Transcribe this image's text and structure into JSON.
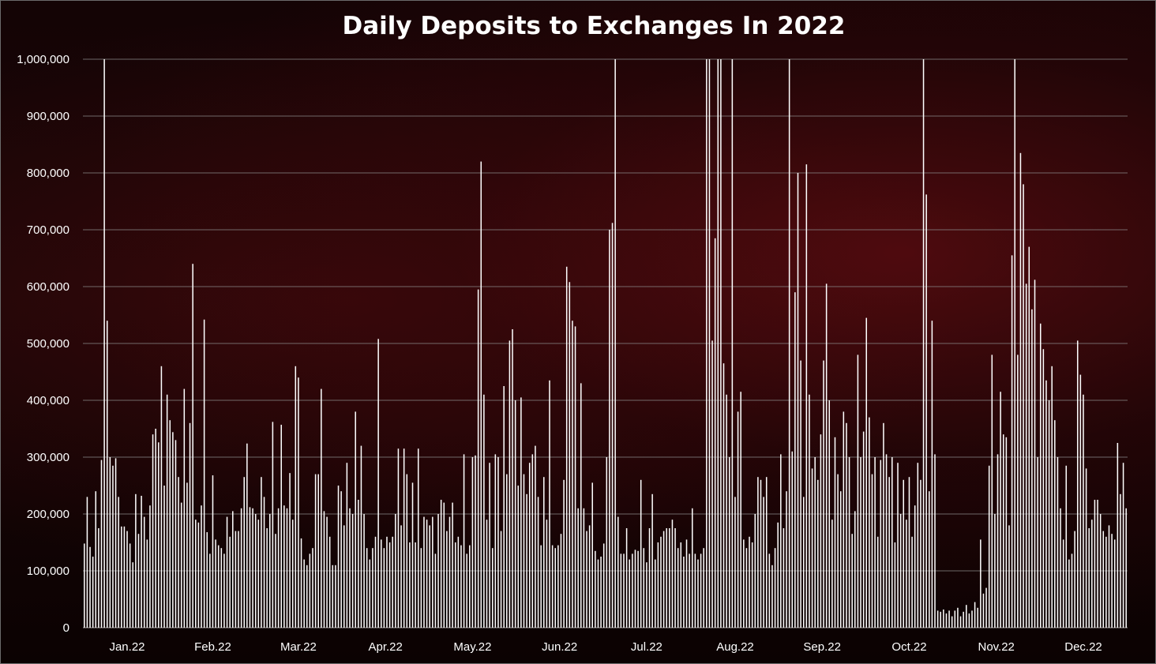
{
  "chart_data": {
    "type": "bar",
    "title": "Daily Deposits to Exchanges In 2022",
    "xlabel": "",
    "ylabel": "",
    "ylim": [
      0,
      1000000
    ],
    "grid": true,
    "legend": "none",
    "bar_color": "#ffffff",
    "background_color": "#1a0607",
    "y_ticks": [
      "0",
      "100,000",
      "200,000",
      "300,000",
      "400,000",
      "500,000",
      "600,000",
      "700,000",
      "800,000",
      "900,000",
      "1,000,000"
    ],
    "x_tick_labels": [
      "Jan.22",
      "Feb.22",
      "Mar.22",
      "Apr.22",
      "May.22",
      "Jun.22",
      "Jul.22",
      "Aug.22",
      "Sep.22",
      "Oct.22",
      "Nov.22",
      "Dec.22"
    ],
    "series": [
      {
        "months": [
          "Jan.22",
          "Feb.22",
          "Mar.22",
          "Apr.22",
          "May.22",
          "Jun.22",
          "Jul.22",
          "Aug.22",
          "Sep.22",
          "Oct.22",
          "Nov.22",
          "Dec.22"
        ],
        "daily_values": [
          [
            148000,
            230000,
            142000,
            125000,
            240000,
            175000,
            295000,
            1000000,
            540000,
            300000,
            285000,
            298000,
            230000,
            178000,
            178000,
            170000,
            148000,
            115000,
            235000,
            165000,
            232000,
            195000,
            155000,
            215000,
            340000,
            350000,
            326000,
            460000,
            250000,
            410000,
            365000
          ],
          [
            344000,
            330000,
            265000,
            220000,
            420000,
            255000,
            360000,
            640000,
            190000,
            185000,
            215000,
            542000,
            168000,
            130000,
            268000,
            155000,
            145000,
            140000,
            130000,
            195000,
            160000,
            205000,
            170000,
            170000,
            210000,
            265000,
            324000,
            212000,
            210000
          ],
          [
            200000,
            190000,
            265000,
            230000,
            175000,
            200000,
            362000,
            165000,
            210000,
            357000,
            215000,
            210000,
            272000,
            190000,
            460000,
            440000,
            157000,
            120000,
            110000,
            130000,
            140000,
            270000,
            270000,
            420000,
            205000,
            195000,
            160000,
            110000,
            110000,
            250000,
            240000
          ],
          [
            180000,
            290000,
            210000,
            200000,
            380000,
            225000,
            320000,
            200000,
            140000,
            120000,
            140000,
            160000,
            508000,
            155000,
            140000,
            160000,
            150000,
            160000,
            200000,
            315000,
            180000,
            315000,
            270000,
            150000,
            255000,
            150000,
            315000,
            140000,
            195000,
            190000
          ],
          [
            180000,
            195000,
            130000,
            200000,
            225000,
            220000,
            170000,
            195000,
            220000,
            150000,
            160000,
            145000,
            305000,
            130000,
            145000,
            300000,
            303000,
            595000,
            820000,
            410000,
            190000,
            290000,
            140000,
            305000,
            300000,
            170000,
            425000,
            270000,
            505000,
            525000,
            400000
          ],
          [
            250000,
            405000,
            270000,
            235000,
            290000,
            305000,
            320000,
            230000,
            145000,
            265000,
            190000,
            435000,
            145000,
            140000,
            145000,
            165000,
            260000,
            635000,
            608000,
            540000,
            530000,
            210000,
            430000,
            210000,
            170000,
            180000,
            255000,
            135000,
            120000,
            125000
          ],
          [
            148000,
            300000,
            700000,
            712000,
            1000000,
            195000,
            130000,
            130000,
            175000,
            120000,
            130000,
            137000,
            135000,
            260000,
            140000,
            115000,
            175000,
            235000,
            120000,
            150000,
            160000,
            170000,
            175000,
            175000,
            190000,
            175000,
            140000,
            150000,
            125000,
            155000,
            130000
          ],
          [
            210000,
            130000,
            120000,
            130000,
            140000,
            1000000,
            1000000,
            505000,
            685000,
            1000000,
            1000000,
            465000,
            410000,
            300000,
            1000000,
            230000,
            380000,
            415000,
            155000,
            140000,
            160000,
            150000,
            200000,
            265000,
            260000,
            230000,
            265000,
            130000,
            110000,
            140000,
            185000
          ],
          [
            305000,
            175000,
            240000,
            1000000,
            310000,
            590000,
            800000,
            470000,
            230000,
            815000,
            410000,
            280000,
            300000,
            260000,
            340000,
            470000,
            605000,
            400000,
            190000,
            335000,
            270000,
            240000,
            380000,
            360000,
            300000,
            165000,
            205000,
            480000,
            300000,
            345000
          ],
          [
            545000,
            370000,
            270000,
            300000,
            160000,
            295000,
            360000,
            305000,
            265000,
            300000,
            150000,
            290000,
            200000,
            260000,
            190000,
            265000,
            160000,
            215000,
            290000,
            260000,
            1000000,
            762000,
            240000,
            540000,
            305000,
            30000,
            28000,
            32000,
            25000,
            30000,
            20000
          ],
          [
            30000,
            35000,
            20000,
            28000,
            40000,
            25000,
            30000,
            45000,
            35000,
            155000,
            60000,
            70000,
            285000,
            480000,
            200000,
            305000,
            415000,
            340000,
            335000,
            180000,
            655000,
            1000000,
            480000,
            835000,
            780000,
            605000,
            670000,
            560000,
            612000,
            300000
          ],
          [
            535000,
            490000,
            435000,
            400000,
            460000,
            365000,
            300000,
            210000,
            155000,
            285000,
            120000,
            130000,
            170000,
            505000,
            445000,
            410000,
            280000,
            175000,
            190000,
            225000,
            225000,
            200000,
            170000,
            160000,
            180000,
            165000,
            155000,
            325000,
            235000,
            290000,
            210000
          ]
        ]
      }
    ]
  }
}
